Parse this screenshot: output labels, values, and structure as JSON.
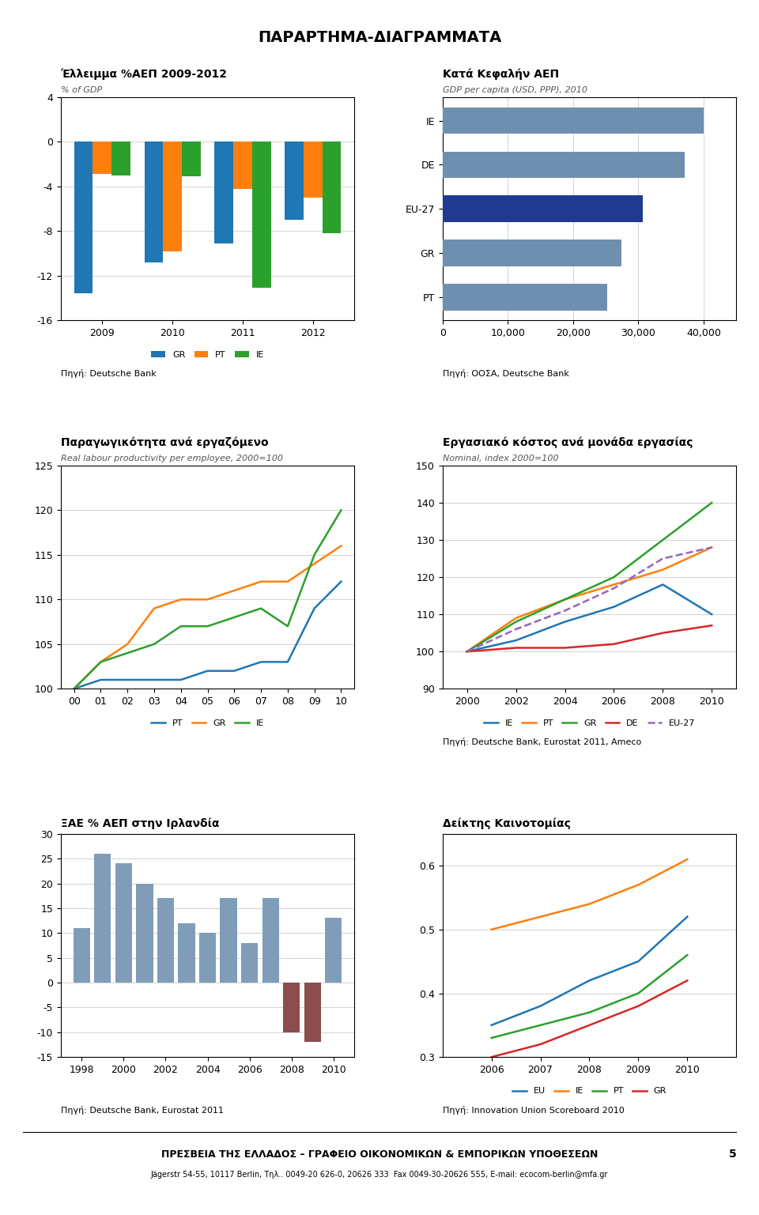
{
  "title": "ΠΑΡΑΡΤΗΜΑ-ΔΙΑΓΡΑΜΜΑΤΑ",
  "annotations": [
    "ΠΡΕΣΒΕΙΑ ΤΗΣ ΕΛΛΑΔΟΣ – ΓΡΑΦΕΙΟ ΟΙΚΟΝΟΜΙΚΩΝ & ΕΜΠΟΡΙΚΩΝ ΥΠΟΘΕΣΕΩΝ",
    "Jägerstr 54-55, 10117 Berlin, Τηλ.. 0049-20 626-0, 20626 333  Fax 0049-30-20626 555, E-mail: ecocom-berlin@mfa.gr",
    "5"
  ],
  "chart_data": [
    {
      "type": "bar",
      "title": "Έλλειμμα %ΑΕΠ 2009-2012",
      "subtitle": "% of GDP",
      "categories": [
        "2009",
        "2010",
        "2011",
        "2012"
      ],
      "series": [
        {
          "name": "GR",
          "values": [
            -13.6,
            -10.8,
            -9.1,
            -7.0
          ]
        },
        {
          "name": "PT",
          "values": [
            -2.9,
            -9.8,
            -4.2,
            -5.0
          ]
        },
        {
          "name": "IE",
          "values": [
            -3.0,
            -3.1,
            -13.1,
            -8.2
          ]
        }
      ],
      "ylim": [
        -16,
        4
      ],
      "yticks": [
        4,
        0,
        -4,
        -8,
        -12,
        -16
      ],
      "grid": true,
      "legend": "upper center",
      "annotations": [
        "Πηγή: Deutsche Bank"
      ]
    },
    {
      "type": "bar",
      "orientation": "horizontal",
      "title": "Κατά Κεφαλήν ΑΕΠ",
      "subtitle": "GDP per capita (USD, PPP), 2010",
      "categories": [
        "PT",
        "GR",
        "EU-27",
        "DE",
        "IE"
      ],
      "values": [
        25200,
        27400,
        30700,
        37100,
        40000
      ],
      "colors": [
        "#6F8FAF",
        "#6F8FAF",
        "#1F3A8F",
        "#6F8FAF",
        "#6F8FAF"
      ],
      "xlim": [
        0,
        45000
      ],
      "xticks": [
        0,
        {
          "value": 10000,
          "label": "10,000"
        },
        {
          "value": 20000,
          "label": "20,000"
        },
        {
          "value": 30000,
          "label": "30,000"
        },
        {
          "value": 40000,
          "label": "40,000"
        }
      ],
      "grid": true,
      "annotations": [
        "Πηγή: ΟΟΣΑ, Deutsche Bank"
      ]
    },
    {
      "type": "line",
      "title": "Παραγωγικότητα ανά εργαζόμενο",
      "subtitle": "Real labour productivity per employee, 2000=100",
      "categories": [
        "00",
        "01",
        "02",
        "03",
        "04",
        "05",
        "06",
        "07",
        "08",
        "09",
        "10"
      ],
      "series": [
        {
          "name": "PT",
          "values": [
            100,
            101,
            101,
            101,
            101,
            102,
            102,
            103,
            103,
            109,
            112
          ]
        },
        {
          "name": "GR",
          "values": [
            100,
            103,
            105,
            109,
            110,
            110,
            111,
            112,
            112,
            114,
            116
          ]
        },
        {
          "name": "IE",
          "values": [
            100,
            103,
            104,
            105,
            107,
            107,
            108,
            109,
            107,
            115,
            120
          ]
        }
      ],
      "ylim": [
        100,
        125
      ],
      "yticks": [
        100,
        105,
        110,
        115,
        120,
        125
      ],
      "grid": true,
      "legend": "upper center"
    },
    {
      "type": "line",
      "title": "Εργασιακό κόστος ανά μονάδα εργασίας",
      "subtitle": "Nominal, index 2000=100",
      "x": [
        2000,
        2002,
        2004,
        2006,
        2008,
        2010
      ],
      "xlim": [
        1999,
        2011
      ],
      "xticks": [
        2000,
        2002,
        2004,
        2006,
        2008,
        2010
      ],
      "series": [
        {
          "name": "IE",
          "values": [
            100,
            103,
            108,
            112,
            118,
            110
          ]
        },
        {
          "name": "PT",
          "values": [
            100,
            109,
            114,
            118,
            122,
            128
          ]
        },
        {
          "name": "GR",
          "values": [
            100,
            108,
            114,
            120,
            130,
            140
          ]
        },
        {
          "name": "DE",
          "values": [
            100,
            101,
            101,
            102,
            105,
            107
          ]
        },
        {
          "name": "EU-27",
          "values": [
            100,
            106,
            111,
            117,
            125,
            128
          ],
          "line_style": "dashed"
        }
      ],
      "ylim": [
        90,
        150
      ],
      "yticks": [
        90,
        100,
        110,
        120,
        130,
        140,
        150
      ],
      "grid": true,
      "legend": "upper center",
      "annotations": [
        "Πηγή: Deutsche Bank, Eurostat 2011, Ameco"
      ]
    },
    {
      "type": "bar",
      "title": "ΞΑΕ % ΑΕΠ στην Ιρλανδία",
      "x": [
        1998,
        1999,
        2000,
        2001,
        2002,
        2003,
        2004,
        2005,
        2006,
        2007,
        2008,
        2009,
        2010
      ],
      "values": [
        11,
        26,
        24,
        20,
        17,
        12,
        10,
        17,
        8,
        17,
        -10,
        -12,
        13
      ],
      "colors": [
        "#7F9DB9",
        "#7F9DB9",
        "#7F9DB9",
        "#7F9DB9",
        "#7F9DB9",
        "#7F9DB9",
        "#7F9DB9",
        "#7F9DB9",
        "#7F9DB9",
        "#7F9DB9",
        "#8B4D4D",
        "#8B4D4D",
        "#7F9DB9"
      ],
      "xlim": [
        1997,
        2011
      ],
      "xticks": [
        1998,
        2000,
        2002,
        2004,
        2006,
        2008,
        2010
      ],
      "ylim": [
        -15,
        30
      ],
      "yticks": [
        -15,
        -10,
        -5,
        0,
        5,
        10,
        15,
        20,
        25,
        30
      ],
      "grid": true,
      "annotations": [
        "Πηγή: Deutsche Bank, Eurostat 2011"
      ]
    },
    {
      "type": "line",
      "title": "Δείκτης Καινοτομίας",
      "x": [
        2006,
        2007,
        2008,
        2009,
        2010
      ],
      "xlim": [
        2005,
        2011
      ],
      "xticks": [
        2006,
        2007,
        2008,
        2009,
        2010
      ],
      "series": [
        {
          "name": "EU",
          "values": [
            0.35,
            0.38,
            0.42,
            0.45,
            0.52
          ]
        },
        {
          "name": "IE",
          "values": [
            0.5,
            0.52,
            0.54,
            0.57,
            0.61
          ]
        },
        {
          "name": "PT",
          "values": [
            0.33,
            0.35,
            0.37,
            0.4,
            0.46
          ]
        },
        {
          "name": "GR",
          "values": [
            0.3,
            0.32,
            0.35,
            0.38,
            0.42
          ]
        }
      ],
      "ylim": [
        0.3,
        0.65
      ],
      "yticks": [
        0.3,
        0.4,
        0.5,
        0.6
      ],
      "grid": true,
      "legend": "upper center",
      "annotations": [
        "Πηγή: Innovation Union Scoreboard 2010"
      ]
    }
  ]
}
